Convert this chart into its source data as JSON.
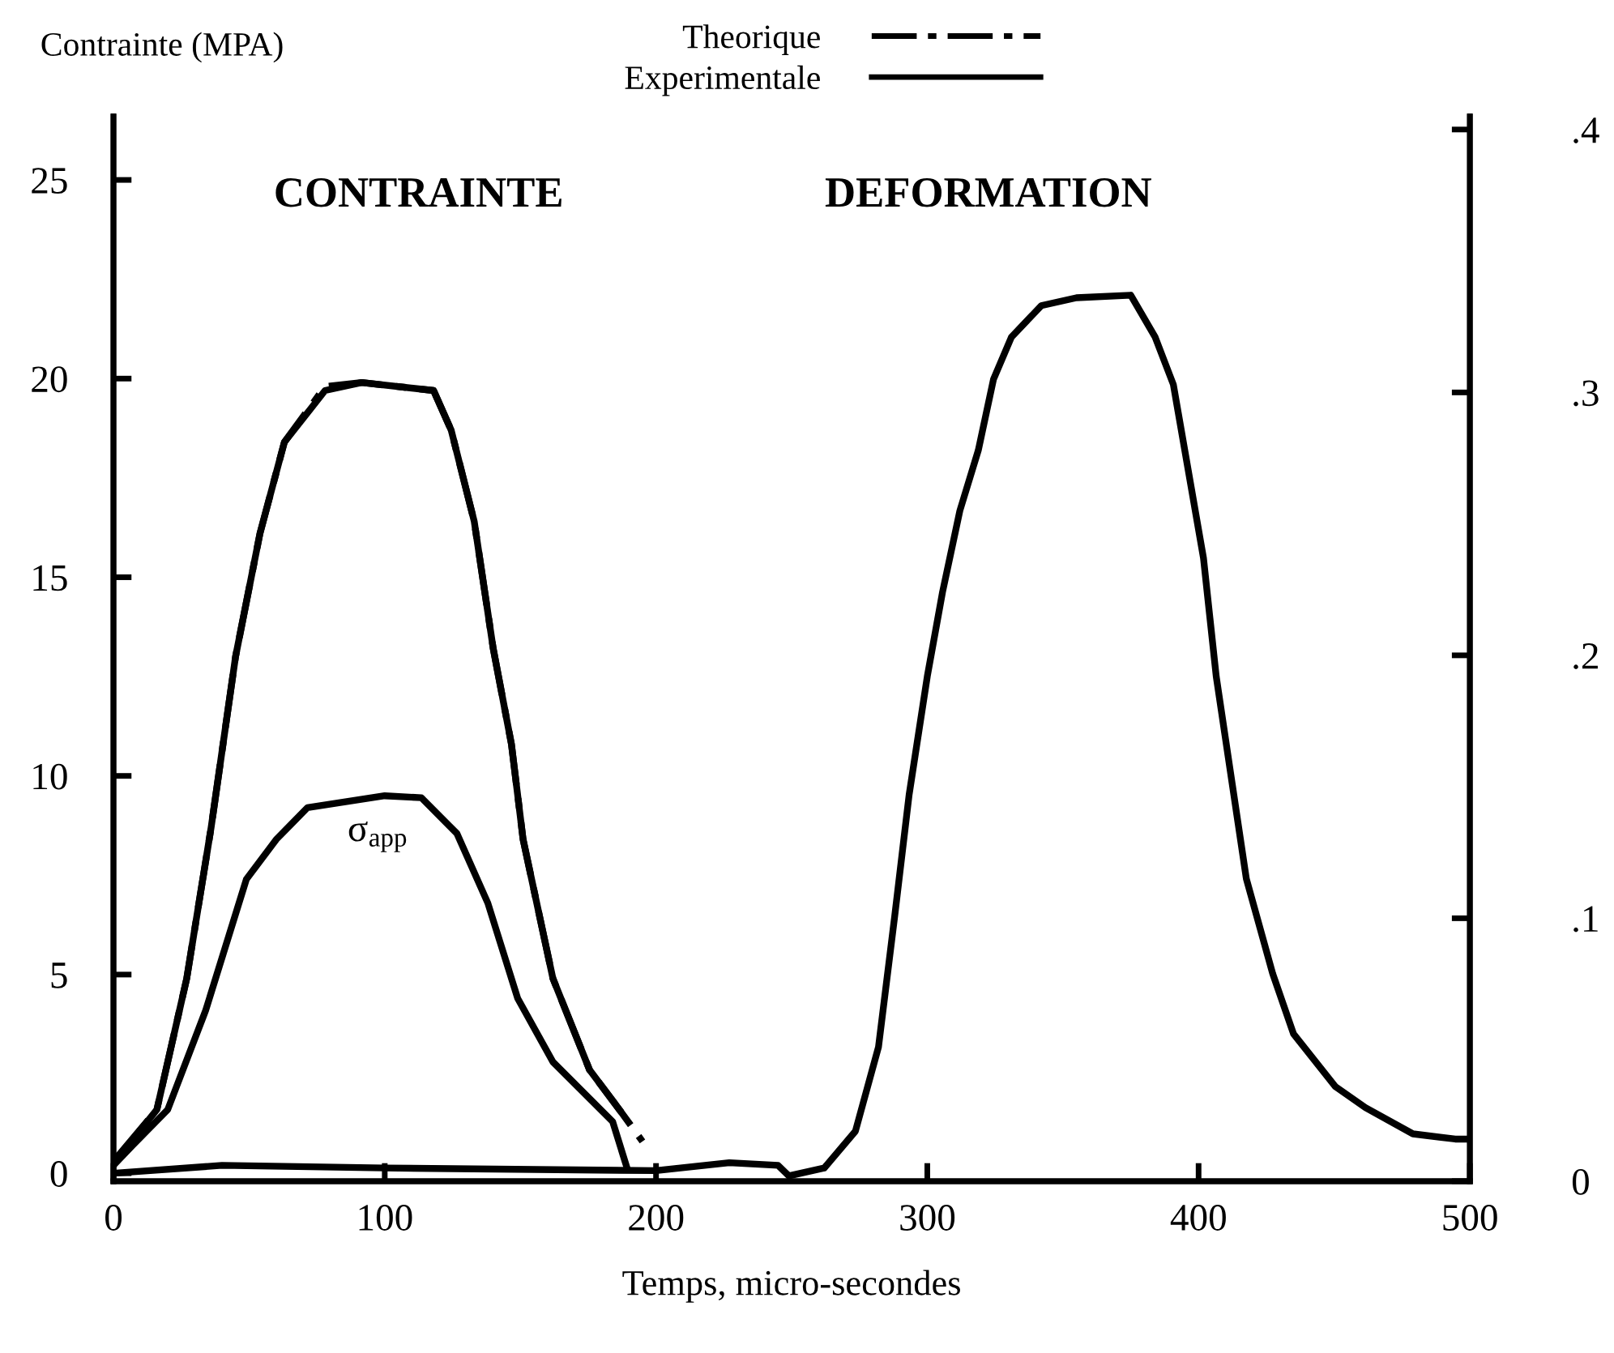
{
  "chart_data": {
    "type": "line",
    "ylabel": "Contrainte (MPA)",
    "xlabel": "Temps, micro-secondes",
    "xlim": [
      0,
      500
    ],
    "xticks": [
      0,
      100,
      200,
      300,
      400,
      500
    ],
    "ylim": [
      -0.2,
      26.6
    ],
    "yticks": [
      0,
      5,
      10,
      15,
      20,
      25
    ],
    "y2lim": [
      0,
      0.405
    ],
    "y2ticks": [
      {
        "value": 0,
        "label": "0"
      },
      {
        "value": 0.1,
        "label": ".1"
      },
      {
        "value": 0.2,
        "label": ".2"
      },
      {
        "value": 0.3,
        "label": ".3"
      },
      {
        "value": 0.4,
        "label": ".4"
      }
    ],
    "grid": false,
    "legend": "top",
    "marker": "none",
    "annotations": [
      "CONTRAINTE",
      "DEFORMATION",
      "σ$_{app}$"
    ],
    "series": [
      {
        "name": "Theorique",
        "color": "#000000",
        "line_style": "dashdot",
        "x": [
          0,
          16,
          27,
          36,
          45,
          54,
          63,
          78,
          91.5,
          118,
          124.5,
          133,
          140,
          146.7,
          151,
          162,
          175.5,
          186.5,
          195
        ],
        "values": [
          0.3,
          1.6,
          4.9,
          8.7,
          13.0,
          16.1,
          18.4,
          19.8,
          19.9,
          19.7,
          18.7,
          16.4,
          13.2,
          10.8,
          8.4,
          4.9,
          2.6,
          1.6,
          0.8
        ]
      },
      {
        "name": "Experimentale",
        "color": "#000000",
        "line_style": "solid",
        "x": [
          0,
          3,
          16,
          27,
          36,
          45,
          54,
          63,
          78,
          91.5,
          118,
          124.5,
          133,
          140,
          146.7,
          151,
          162,
          175.5,
          186.5
        ],
        "values": [
          0.2,
          0.5,
          1.6,
          4.9,
          8.7,
          13.0,
          16.1,
          18.4,
          19.7,
          19.9,
          19.7,
          18.7,
          16.4,
          13.2,
          10.8,
          8.4,
          4.9,
          2.6,
          1.6
        ]
      },
      {
        "color": "#000000",
        "line_style": "solid",
        "x": [
          0,
          7,
          20,
          34,
          49,
          60,
          71.5,
          100,
          113.5,
          126.6,
          138,
          149,
          162,
          184,
          189
        ],
        "values": [
          0.2,
          0.7,
          1.6,
          4.1,
          7.4,
          8.4,
          9.2,
          9.5,
          9.45,
          8.55,
          6.8,
          4.4,
          2.8,
          1.3,
          0.2
        ]
      },
      {
        "color": "#000000",
        "line_style": "solid",
        "axis": "y2",
        "x": [
          0,
          40,
          100,
          200,
          227,
          245,
          249,
          262,
          273.5,
          282,
          288,
          293.3,
          300,
          305.6,
          312,
          318.8,
          324.4,
          331,
          342,
          355,
          375,
          384,
          390.7,
          401.8,
          406.5,
          417.6,
          427.3,
          435,
          450.4,
          461.5,
          479,
          494.6,
          500
        ],
        "values": [
          0.003,
          0.006,
          0.005,
          0.004,
          0.007,
          0.006,
          0.002,
          0.005,
          0.019,
          0.051,
          0.101,
          0.147,
          0.192,
          0.224,
          0.255,
          0.278,
          0.305,
          0.321,
          0.333,
          0.336,
          0.337,
          0.321,
          0.303,
          0.237,
          0.192,
          0.115,
          0.079,
          0.056,
          0.036,
          0.028,
          0.018,
          0.016,
          0.016
        ]
      }
    ]
  }
}
